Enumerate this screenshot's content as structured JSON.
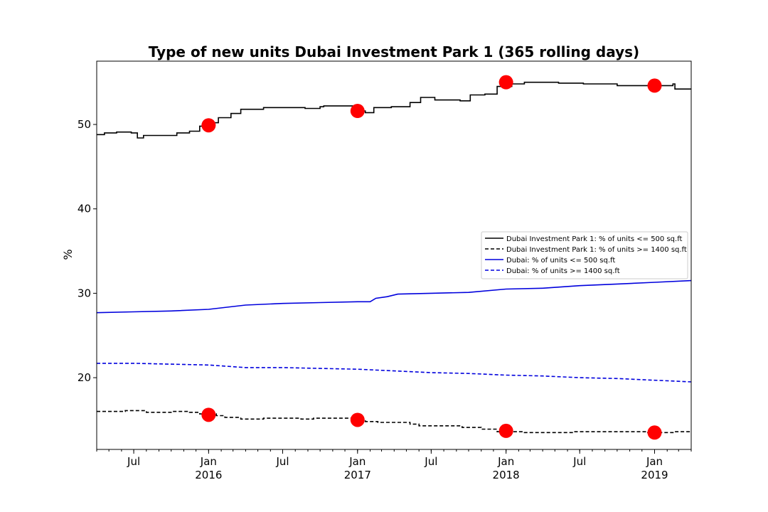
{
  "chart_data": {
    "type": "line",
    "title": "Type of new units Dubai Investment Park 1 (365 rolling days)",
    "xlabel": "",
    "ylabel": "%",
    "x_range": [
      "2015-04-01",
      "2019-04-01"
    ],
    "ylim": [
      11.5,
      57.5
    ],
    "y_ticks": [
      20,
      30,
      40,
      50
    ],
    "x_major_ticks": [
      {
        "date": "2015-07-01",
        "label": "Jul",
        "sub": ""
      },
      {
        "date": "2016-01-01",
        "label": "Jan",
        "sub": "2016"
      },
      {
        "date": "2016-07-01",
        "label": "Jul",
        "sub": ""
      },
      {
        "date": "2017-01-01",
        "label": "Jan",
        "sub": "2017"
      },
      {
        "date": "2017-07-01",
        "label": "Jul",
        "sub": ""
      },
      {
        "date": "2018-01-01",
        "label": "Jan",
        "sub": "2018"
      },
      {
        "date": "2018-07-01",
        "label": "Jul",
        "sub": ""
      },
      {
        "date": "2019-01-01",
        "label": "Jan",
        "sub": "2019"
      }
    ],
    "legend_position": "center-right",
    "series": [
      {
        "name": "Dubai Investment Park 1: % of units <= 500 sq.ft",
        "color": "#000000",
        "dash": "solid",
        "step": true,
        "points": [
          [
            "2015-04-01",
            48.8
          ],
          [
            "2015-04-20",
            49.0
          ],
          [
            "2015-05-20",
            49.1
          ],
          [
            "2015-06-25",
            49.0
          ],
          [
            "2015-07-10",
            48.4
          ],
          [
            "2015-07-25",
            48.7
          ],
          [
            "2015-09-15",
            48.7
          ],
          [
            "2015-10-15",
            49.0
          ],
          [
            "2015-11-15",
            49.2
          ],
          [
            "2015-12-10",
            49.8
          ],
          [
            "2016-01-10",
            50.2
          ],
          [
            "2016-01-25",
            50.8
          ],
          [
            "2016-02-25",
            51.3
          ],
          [
            "2016-03-20",
            51.8
          ],
          [
            "2016-05-15",
            52.0
          ],
          [
            "2016-08-25",
            51.9
          ],
          [
            "2016-10-01",
            52.1
          ],
          [
            "2016-10-10",
            52.2
          ],
          [
            "2016-12-20",
            52.1
          ],
          [
            "2016-12-26",
            51.3
          ],
          [
            "2016-12-31",
            51.6
          ],
          [
            "2017-01-20",
            51.4
          ],
          [
            "2017-02-10",
            52.0
          ],
          [
            "2017-03-25",
            52.1
          ],
          [
            "2017-05-10",
            52.6
          ],
          [
            "2017-06-05",
            53.2
          ],
          [
            "2017-07-10",
            52.9
          ],
          [
            "2017-09-10",
            52.8
          ],
          [
            "2017-10-05",
            53.5
          ],
          [
            "2017-11-10",
            53.6
          ],
          [
            "2017-12-10",
            54.5
          ],
          [
            "2018-01-15",
            54.8
          ],
          [
            "2018-02-15",
            55.0
          ],
          [
            "2018-05-10",
            54.9
          ],
          [
            "2018-07-10",
            54.8
          ],
          [
            "2018-10-01",
            54.6
          ],
          [
            "2019-01-25",
            54.6
          ],
          [
            "2019-02-15",
            54.8
          ],
          [
            "2019-02-20",
            54.2
          ],
          [
            "2019-04-01",
            54.2
          ]
        ],
        "markers": [
          [
            "2016-01-01",
            49.9
          ],
          [
            "2017-01-01",
            51.6
          ],
          [
            "2018-01-01",
            55.0
          ],
          [
            "2019-01-01",
            54.6
          ]
        ]
      },
      {
        "name": "Dubai Investment Park 1: % of units >= 1400 sq.ft",
        "color": "#000000",
        "dash": "dashed",
        "step": true,
        "points": [
          [
            "2015-04-01",
            16.0
          ],
          [
            "2015-06-10",
            16.1
          ],
          [
            "2015-08-01",
            15.9
          ],
          [
            "2015-10-01",
            16.0
          ],
          [
            "2015-11-15",
            15.9
          ],
          [
            "2015-12-10",
            15.7
          ],
          [
            "2016-01-20",
            15.5
          ],
          [
            "2016-02-10",
            15.3
          ],
          [
            "2016-03-20",
            15.1
          ],
          [
            "2016-05-15",
            15.2
          ],
          [
            "2016-08-15",
            15.1
          ],
          [
            "2016-09-15",
            15.2
          ],
          [
            "2016-12-01",
            15.2
          ],
          [
            "2016-12-20",
            14.9
          ],
          [
            "2017-01-20",
            14.8
          ],
          [
            "2017-02-20",
            14.7
          ],
          [
            "2017-05-10",
            14.5
          ],
          [
            "2017-06-01",
            14.3
          ],
          [
            "2017-08-01",
            14.3
          ],
          [
            "2017-09-15",
            14.1
          ],
          [
            "2017-11-01",
            13.9
          ],
          [
            "2017-12-10",
            13.6
          ],
          [
            "2018-02-15",
            13.5
          ],
          [
            "2018-05-01",
            13.5
          ],
          [
            "2018-06-15",
            13.6
          ],
          [
            "2018-12-15",
            13.5
          ],
          [
            "2019-02-01",
            13.5
          ],
          [
            "2019-02-20",
            13.6
          ],
          [
            "2019-04-01",
            13.6
          ]
        ],
        "markers": [
          [
            "2016-01-01",
            15.6
          ],
          [
            "2017-01-01",
            15.0
          ],
          [
            "2018-01-01",
            13.7
          ],
          [
            "2019-01-01",
            13.5
          ]
        ]
      },
      {
        "name": "Dubai: % of units <= 500 sq.ft",
        "color": "#0000dd",
        "dash": "solid",
        "step": false,
        "points": [
          [
            "2015-04-01",
            27.7
          ],
          [
            "2015-07-01",
            27.8
          ],
          [
            "2015-10-01",
            27.9
          ],
          [
            "2016-01-01",
            28.1
          ],
          [
            "2016-04-01",
            28.6
          ],
          [
            "2016-07-01",
            28.8
          ],
          [
            "2016-10-01",
            28.9
          ],
          [
            "2017-01-01",
            29.0
          ],
          [
            "2017-02-01",
            29.0
          ],
          [
            "2017-02-15",
            29.4
          ],
          [
            "2017-03-15",
            29.6
          ],
          [
            "2017-04-10",
            29.9
          ],
          [
            "2017-07-01",
            30.0
          ],
          [
            "2017-10-01",
            30.1
          ],
          [
            "2018-01-01",
            30.5
          ],
          [
            "2018-04-01",
            30.6
          ],
          [
            "2018-07-01",
            30.9
          ],
          [
            "2018-10-01",
            31.1
          ],
          [
            "2019-01-01",
            31.3
          ],
          [
            "2019-04-01",
            31.5
          ]
        ],
        "markers": []
      },
      {
        "name": "Dubai: % of units >= 1400 sq.ft",
        "color": "#0000dd",
        "dash": "dashed",
        "step": false,
        "points": [
          [
            "2015-04-01",
            21.7
          ],
          [
            "2015-07-01",
            21.7
          ],
          [
            "2015-10-01",
            21.6
          ],
          [
            "2016-01-01",
            21.5
          ],
          [
            "2016-04-01",
            21.2
          ],
          [
            "2016-07-01",
            21.2
          ],
          [
            "2016-10-01",
            21.1
          ],
          [
            "2017-01-01",
            21.0
          ],
          [
            "2017-04-01",
            20.8
          ],
          [
            "2017-07-01",
            20.6
          ],
          [
            "2017-10-01",
            20.5
          ],
          [
            "2018-01-01",
            20.3
          ],
          [
            "2018-04-01",
            20.2
          ],
          [
            "2018-07-01",
            20.0
          ],
          [
            "2018-10-01",
            19.9
          ],
          [
            "2019-01-01",
            19.7
          ],
          [
            "2019-04-01",
            19.5
          ]
        ],
        "markers": []
      }
    ]
  }
}
